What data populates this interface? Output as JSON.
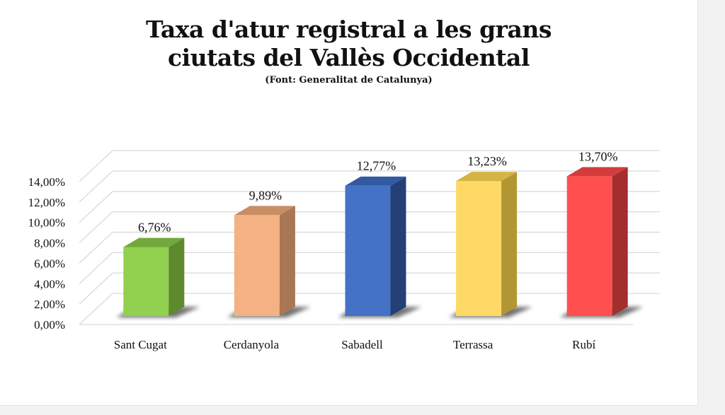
{
  "chart_data": {
    "type": "bar",
    "title_lines": [
      "Taxa d'atur registral a les grans",
      "ciutats del Vallès Occidental"
    ],
    "subtitle": "(Font: Generalitat de Catalunya)",
    "categories": [
      "Sant Cugat",
      "Cerdanyola",
      "Sabadell",
      "Terrassa",
      "Rubí"
    ],
    "values": [
      6.76,
      9.89,
      12.77,
      13.23,
      13.7
    ],
    "value_labels": [
      "6,76%",
      "9,89%",
      "12,77%",
      "13,23%",
      "13,70%"
    ],
    "ylim": [
      0,
      14
    ],
    "yticks": [
      0,
      2,
      4,
      6,
      8,
      10,
      12,
      14
    ],
    "ytick_labels": [
      "0,00%",
      "2,00%",
      "4,00%",
      "6,00%",
      "8,00%",
      "10,00%",
      "12,00%",
      "14,00%"
    ],
    "grid": true,
    "style": "3d-column",
    "colors": [
      {
        "front": "#92d050",
        "side": "#5e8a2e",
        "top": "#73a83c"
      },
      {
        "front": "#f4b183",
        "side": "#a97755",
        "top": "#c98e64"
      },
      {
        "front": "#4472c4",
        "side": "#253f77",
        "top": "#3359a0"
      },
      {
        "front": "#ffd966",
        "side": "#b39634",
        "top": "#d4b444"
      },
      {
        "front": "#ff4f4f",
        "side": "#a32e2e",
        "top": "#d33c3c"
      }
    ]
  }
}
